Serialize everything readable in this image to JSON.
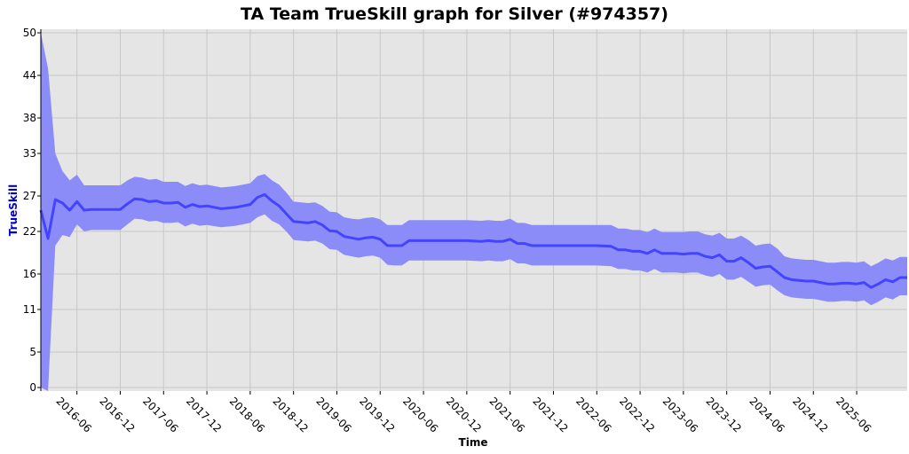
{
  "chart_data": {
    "type": "line",
    "title": "TA Team TrueSkill graph for Silver (#974357)",
    "xlabel": "Time",
    "ylabel": "TrueSkill",
    "x_tick_labels": [
      "2016-06",
      "2016-12",
      "2017-06",
      "2017-12",
      "2018-06",
      "2018-12",
      "2019-06",
      "2019-12",
      "2020-06",
      "2020-12",
      "2021-06",
      "2021-12",
      "2022-06",
      "2022-12",
      "2023-06",
      "2023-12",
      "2024-06",
      "2024-12",
      "2025-06"
    ],
    "y_tick_labels": [
      "0",
      "5",
      "11",
      "16",
      "22",
      "27",
      "33",
      "38",
      "44",
      "50"
    ],
    "y_ticks": [
      0,
      5,
      11,
      16,
      22,
      27,
      33,
      38,
      44,
      50
    ],
    "xlim": [
      "2016-01",
      "2026-01"
    ],
    "ylim": [
      -0.5,
      50.5
    ],
    "grid": true,
    "colors": {
      "line": "#4444ff",
      "band": "#8c8cf8",
      "plot_bg": "#e5e5e5",
      "grid": "#c8c8c8",
      "ylabel": "#0000cc"
    },
    "series": [
      {
        "x": [
          "2016-01",
          "2016-02",
          "2016-03",
          "2016-04",
          "2016-05",
          "2016-06",
          "2016-07",
          "2016-08",
          "2016-09",
          "2016-10",
          "2016-11",
          "2016-12",
          "2017-01",
          "2017-02",
          "2017-03",
          "2017-04",
          "2017-05",
          "2017-06",
          "2017-07",
          "2017-08",
          "2017-09",
          "2017-10",
          "2017-11",
          "2017-12",
          "2018-02",
          "2018-04",
          "2018-06",
          "2018-07",
          "2018-08",
          "2018-09",
          "2018-10",
          "2018-11",
          "2018-12",
          "2019-02",
          "2019-03",
          "2019-04",
          "2019-05",
          "2019-06",
          "2019-07",
          "2019-08",
          "2019-09",
          "2019-10",
          "2019-11",
          "2019-12",
          "2020-01",
          "2020-02",
          "2020-03",
          "2020-04",
          "2020-05",
          "2020-06",
          "2020-08",
          "2020-12",
          "2021-02",
          "2021-03",
          "2021-04",
          "2021-05",
          "2021-06",
          "2021-07",
          "2021-08",
          "2021-09",
          "2021-12",
          "2022-06",
          "2022-08",
          "2022-09",
          "2022-10",
          "2022-11",
          "2022-12",
          "2023-01",
          "2023-02",
          "2023-03",
          "2023-04",
          "2023-05",
          "2023-06",
          "2023-07",
          "2023-08",
          "2023-09",
          "2023-10",
          "2023-11",
          "2023-12",
          "2024-01",
          "2024-02",
          "2024-03",
          "2024-04",
          "2024-05",
          "2024-06",
          "2024-07",
          "2024-08",
          "2024-09",
          "2024-10",
          "2024-11",
          "2024-12",
          "2025-01",
          "2025-02",
          "2025-03",
          "2025-04",
          "2025-05",
          "2025-06",
          "2025-07",
          "2025-08",
          "2025-09",
          "2025-10",
          "2025-11",
          "2025-12",
          "2026-01"
        ],
        "mean": [
          25.0,
          21.0,
          26.5,
          26.0,
          25.0,
          26.2,
          25.0,
          25.1,
          25.1,
          25.1,
          25.1,
          25.1,
          25.9,
          26.6,
          26.5,
          26.2,
          26.3,
          26.0,
          26.0,
          26.1,
          25.4,
          25.8,
          25.5,
          25.6,
          25.2,
          25.4,
          25.8,
          26.8,
          27.2,
          26.3,
          25.6,
          24.5,
          23.4,
          23.2,
          23.4,
          22.9,
          22.1,
          22.0,
          21.3,
          21.1,
          20.9,
          21.1,
          21.2,
          20.9,
          20.0,
          20.0,
          20.0,
          20.7,
          20.7,
          20.7,
          20.7,
          20.7,
          20.6,
          20.7,
          20.6,
          20.6,
          20.9,
          20.3,
          20.3,
          20.0,
          20.0,
          20.0,
          19.9,
          19.4,
          19.4,
          19.2,
          19.2,
          18.9,
          19.4,
          18.9,
          18.9,
          18.9,
          18.8,
          18.9,
          18.9,
          18.5,
          18.3,
          18.7,
          17.8,
          17.8,
          18.3,
          17.6,
          16.8,
          17.0,
          17.1,
          16.3,
          15.5,
          15.2,
          15.1,
          15.0,
          15.0,
          14.8,
          14.6,
          14.6,
          14.7,
          14.7,
          14.6,
          14.8,
          14.1,
          14.6,
          15.2,
          14.9,
          15.5,
          15.5
        ],
        "upper": [
          50.0,
          45.0,
          33.0,
          30.5,
          29.2,
          30.0,
          28.5,
          28.5,
          28.5,
          28.5,
          28.5,
          28.5,
          29.2,
          29.7,
          29.6,
          29.3,
          29.4,
          29.0,
          29.0,
          29.0,
          28.4,
          28.8,
          28.5,
          28.6,
          28.2,
          28.4,
          28.8,
          29.8,
          30.1,
          29.2,
          28.6,
          27.5,
          26.2,
          26.0,
          26.1,
          25.6,
          24.8,
          24.7,
          24.0,
          23.8,
          23.7,
          23.9,
          24.0,
          23.7,
          22.9,
          22.9,
          22.9,
          23.6,
          23.6,
          23.6,
          23.6,
          23.6,
          23.5,
          23.6,
          23.5,
          23.5,
          23.8,
          23.2,
          23.2,
          22.9,
          22.9,
          22.9,
          22.9,
          22.4,
          22.4,
          22.2,
          22.2,
          21.9,
          22.4,
          21.9,
          21.9,
          21.9,
          21.9,
          22.0,
          22.0,
          21.6,
          21.4,
          21.8,
          21.0,
          21.0,
          21.4,
          20.8,
          20.0,
          20.2,
          20.3,
          19.6,
          18.5,
          18.2,
          18.1,
          18.0,
          18.0,
          17.8,
          17.6,
          17.6,
          17.7,
          17.7,
          17.6,
          17.8,
          17.1,
          17.6,
          18.2,
          17.9,
          18.4,
          18.4
        ],
        "lower": [
          0.0,
          -0.5,
          20.0,
          21.5,
          21.2,
          23.0,
          22.0,
          22.2,
          22.2,
          22.2,
          22.2,
          22.2,
          23.0,
          23.8,
          23.7,
          23.4,
          23.5,
          23.2,
          23.2,
          23.3,
          22.7,
          23.1,
          22.8,
          22.9,
          22.6,
          22.8,
          23.2,
          24.0,
          24.4,
          23.5,
          23.0,
          22.0,
          20.8,
          20.6,
          20.7,
          20.3,
          19.5,
          19.4,
          18.7,
          18.5,
          18.3,
          18.5,
          18.6,
          18.3,
          17.3,
          17.2,
          17.2,
          17.9,
          17.9,
          17.9,
          17.9,
          17.9,
          17.8,
          17.9,
          17.8,
          17.8,
          18.1,
          17.5,
          17.5,
          17.2,
          17.2,
          17.2,
          17.1,
          16.7,
          16.7,
          16.5,
          16.5,
          16.2,
          16.7,
          16.2,
          16.2,
          16.2,
          16.1,
          16.2,
          16.2,
          15.8,
          15.6,
          16.0,
          15.2,
          15.2,
          15.6,
          14.9,
          14.2,
          14.4,
          14.5,
          13.7,
          13.0,
          12.7,
          12.6,
          12.5,
          12.5,
          12.3,
          12.1,
          12.1,
          12.2,
          12.2,
          12.1,
          12.3,
          11.6,
          12.1,
          12.7,
          12.4,
          13.0,
          13.0
        ]
      }
    ]
  }
}
